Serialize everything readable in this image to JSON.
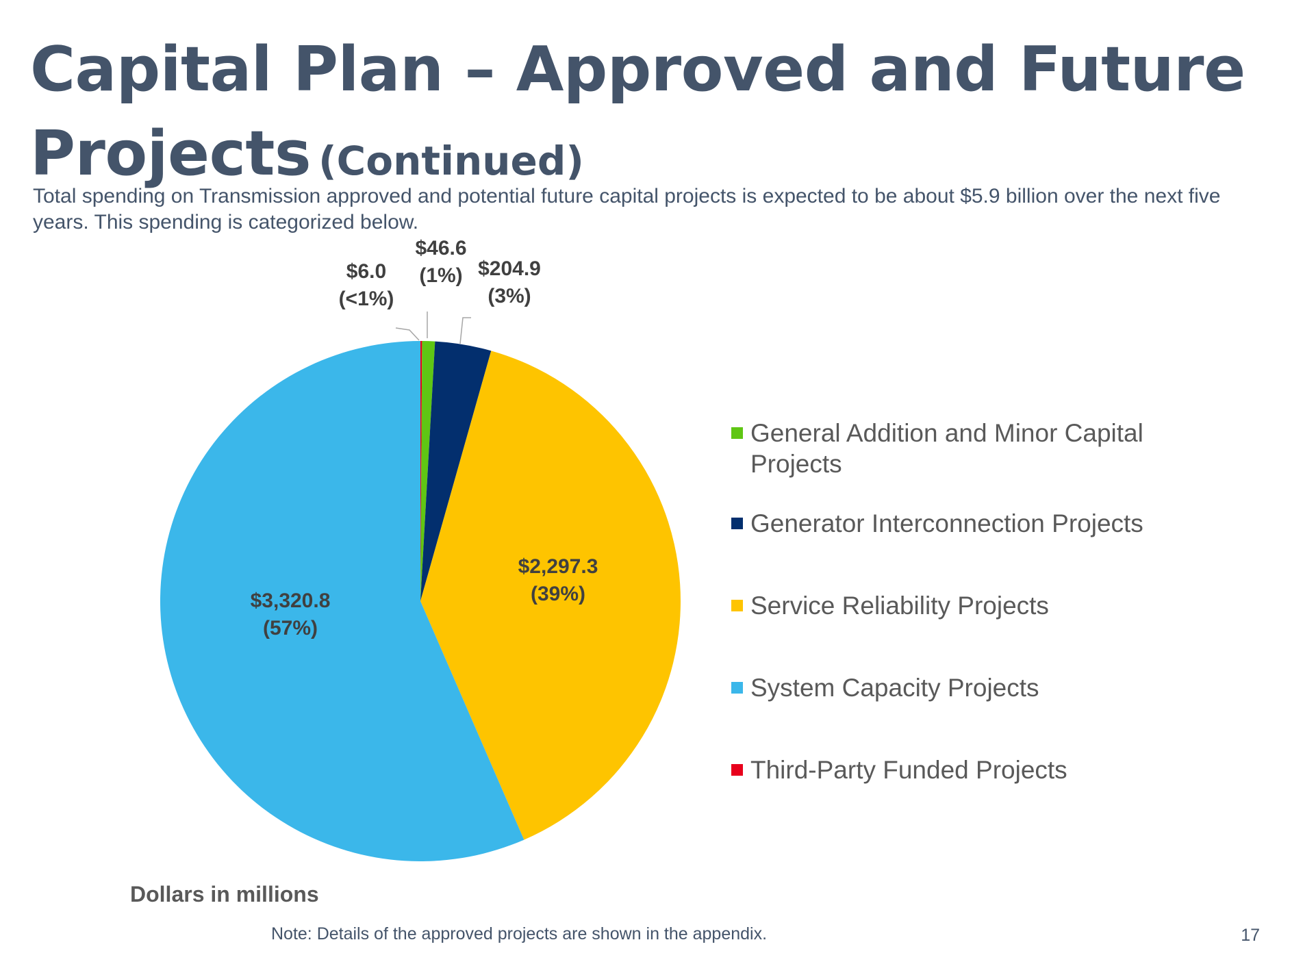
{
  "slide": {
    "title": "Capital Plan – Approved and Future Projects",
    "title_suffix": "(Continued)",
    "subtitle": "Total spending on Transmission approved and potential future capital projects is expected to be about $5.9 billion over the next five years. This spending is categorized below.",
    "units_note": "Dollars in millions",
    "footnote": "Note: Details of the approved projects are shown in the appendix.",
    "page_number": "17"
  },
  "chart_data": {
    "type": "pie",
    "title": "",
    "units": "Dollars in millions",
    "start_angle_deg": 0,
    "direction": "clockwise",
    "order": [
      "Third-Party Funded Projects",
      "General Addition and Minor Capital Projects",
      "Generator Interconnection Projects",
      "Service Reliability Projects",
      "System Capacity Projects"
    ],
    "legend_position": "right",
    "slices": [
      {
        "name": "Third-Party Funded Projects",
        "value": 6.0,
        "value_label": "$6.0",
        "percent_label": "(<1%)",
        "color": "#e8001c"
      },
      {
        "name": "General Addition and Minor Capital Projects",
        "value": 46.6,
        "value_label": "$46.6",
        "percent_label": "(1%)",
        "color": "#5fc614"
      },
      {
        "name": "Generator Interconnection Projects",
        "value": 204.9,
        "value_label": "$204.9",
        "percent_label": "(3%)",
        "color": "#032f6e"
      },
      {
        "name": "Service Reliability Projects",
        "value": 2297.3,
        "value_label": "$2,297.3",
        "percent_label": "(39%)",
        "color": "#fec400"
      },
      {
        "name": "System Capacity Projects",
        "value": 3320.8,
        "value_label": "$3,320.8",
        "percent_label": "(57%)",
        "color": "#3bb7ea"
      }
    ],
    "legend": [
      {
        "label": "General Addition and Minor Capital Projects",
        "color": "#5fc614"
      },
      {
        "label": "Generator Interconnection Projects",
        "color": "#032f6e"
      },
      {
        "label": "Service Reliability Projects",
        "color": "#fec400"
      },
      {
        "label": "System Capacity Projects",
        "color": "#3bb7ea"
      },
      {
        "label": "Third-Party Funded Projects",
        "color": "#e8001c"
      }
    ]
  }
}
